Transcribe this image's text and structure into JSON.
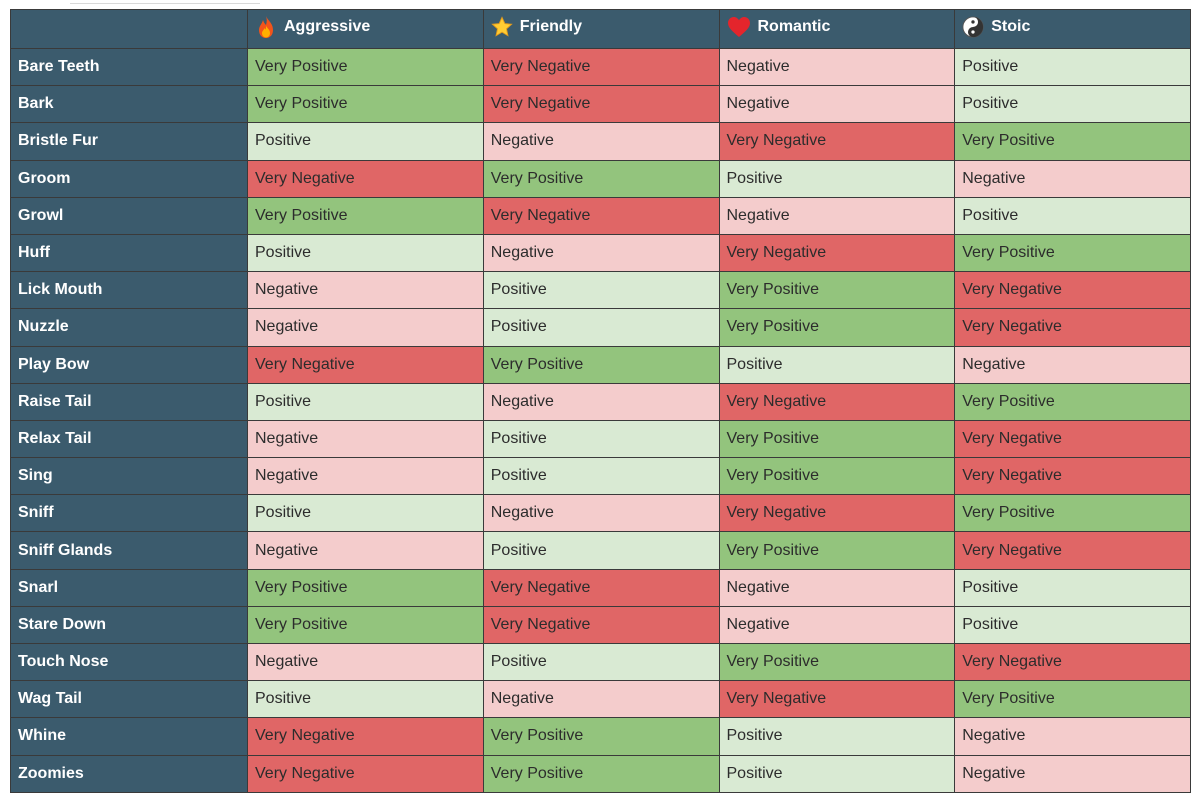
{
  "table": {
    "corner_label": "",
    "columns": [
      {
        "key": "aggressive",
        "label": "Aggressive",
        "icon": "fire-icon"
      },
      {
        "key": "friendly",
        "label": "Friendly",
        "icon": "star-icon"
      },
      {
        "key": "romantic",
        "label": "Romantic",
        "icon": "heart-icon"
      },
      {
        "key": "stoic",
        "label": "Stoic",
        "icon": "yin-yang-icon"
      }
    ],
    "rating_colors": {
      "Very Positive": "#93c47d",
      "Positive": "#d9ead3",
      "Negative": "#f4cccc",
      "Very Negative": "#e06666"
    },
    "header_color": "#3b5b6d",
    "rows": [
      {
        "label": "Bare Teeth",
        "values": [
          "Very Positive",
          "Very Negative",
          "Negative",
          "Positive"
        ]
      },
      {
        "label": "Bark",
        "values": [
          "Very Positive",
          "Very Negative",
          "Negative",
          "Positive"
        ]
      },
      {
        "label": "Bristle Fur",
        "values": [
          "Positive",
          "Negative",
          "Very Negative",
          "Very Positive"
        ]
      },
      {
        "label": "Groom",
        "values": [
          "Very Negative",
          "Very Positive",
          "Positive",
          "Negative"
        ]
      },
      {
        "label": "Growl",
        "values": [
          "Very Positive",
          "Very Negative",
          "Negative",
          "Positive"
        ]
      },
      {
        "label": "Huff",
        "values": [
          "Positive",
          "Negative",
          "Very Negative",
          "Very Positive"
        ]
      },
      {
        "label": "Lick Mouth",
        "values": [
          "Negative",
          "Positive",
          "Very Positive",
          "Very Negative"
        ]
      },
      {
        "label": "Nuzzle",
        "values": [
          "Negative",
          "Positive",
          "Very Positive",
          "Very Negative"
        ]
      },
      {
        "label": "Play Bow",
        "values": [
          "Very Negative",
          "Very Positive",
          "Positive",
          "Negative"
        ]
      },
      {
        "label": "Raise Tail",
        "values": [
          "Positive",
          "Negative",
          "Very Negative",
          "Very Positive"
        ]
      },
      {
        "label": "Relax Tail",
        "values": [
          "Negative",
          "Positive",
          "Very Positive",
          "Very Negative"
        ]
      },
      {
        "label": "Sing",
        "values": [
          "Negative",
          "Positive",
          "Very Positive",
          "Very Negative"
        ]
      },
      {
        "label": "Sniff",
        "values": [
          "Positive",
          "Negative",
          "Very Negative",
          "Very Positive"
        ]
      },
      {
        "label": "Sniff Glands",
        "values": [
          "Negative",
          "Positive",
          "Very Positive",
          "Very Negative"
        ]
      },
      {
        "label": "Snarl",
        "values": [
          "Very Positive",
          "Very Negative",
          "Negative",
          "Positive"
        ]
      },
      {
        "label": "Stare Down",
        "values": [
          "Very Positive",
          "Very Negative",
          "Negative",
          "Positive"
        ]
      },
      {
        "label": "Touch Nose",
        "values": [
          "Negative",
          "Positive",
          "Very Positive",
          "Very Negative"
        ]
      },
      {
        "label": "Wag Tail",
        "values": [
          "Positive",
          "Negative",
          "Very Negative",
          "Very Positive"
        ]
      },
      {
        "label": "Whine",
        "values": [
          "Very Negative",
          "Very Positive",
          "Positive",
          "Negative"
        ]
      },
      {
        "label": "Zoomies",
        "values": [
          "Very Negative",
          "Very Positive",
          "Positive",
          "Negative"
        ]
      }
    ]
  }
}
